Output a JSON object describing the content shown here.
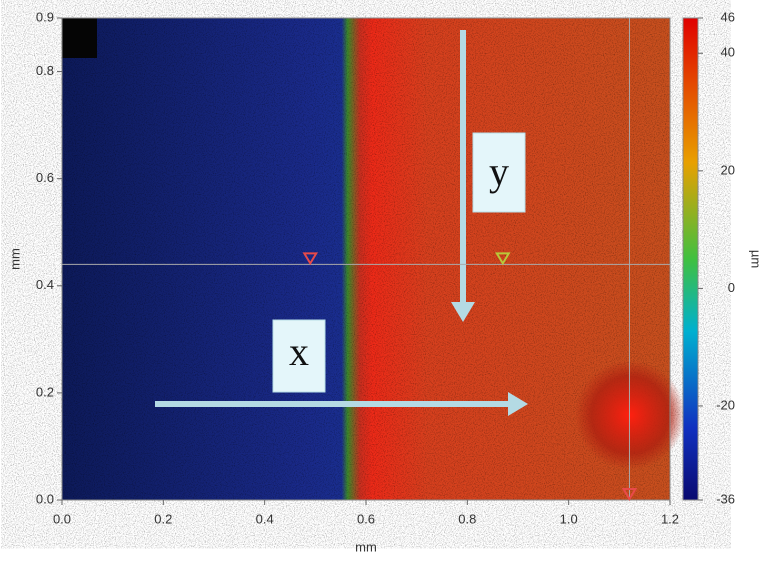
{
  "chart_data": {
    "type": "heatmap",
    "xlabel": "mm",
    "ylabel": "mm",
    "colorbar_label": "µm",
    "xlim": [
      0,
      1.2
    ],
    "ylim": [
      0,
      0.9
    ],
    "xticks": [
      {
        "value": 0,
        "label": "0.0"
      },
      0.2,
      0.4,
      0.6,
      0.8,
      {
        "value": 1,
        "label": "1.0"
      },
      1.2
    ],
    "yticks": [
      {
        "value": 0,
        "label": "0.0"
      },
      0.2,
      0.4,
      0.6,
      0.8,
      0.9
    ],
    "clim": [
      -36,
      46
    ],
    "cticks": [
      -36,
      -20,
      0,
      20,
      40,
      46
    ],
    "cursor": {
      "x": 1.12,
      "y": 0.44
    },
    "markers": [
      {
        "x": 0.49,
        "y": 0.44,
        "color": "#e84a4a"
      },
      {
        "x": 0.87,
        "y": 0.44,
        "color": "#b8c83a"
      },
      {
        "x": 1.12,
        "y": 0,
        "color": "#e84a4a"
      }
    ],
    "annotations": [
      {
        "text": "x"
      },
      {
        "text": "y"
      }
    ]
  }
}
